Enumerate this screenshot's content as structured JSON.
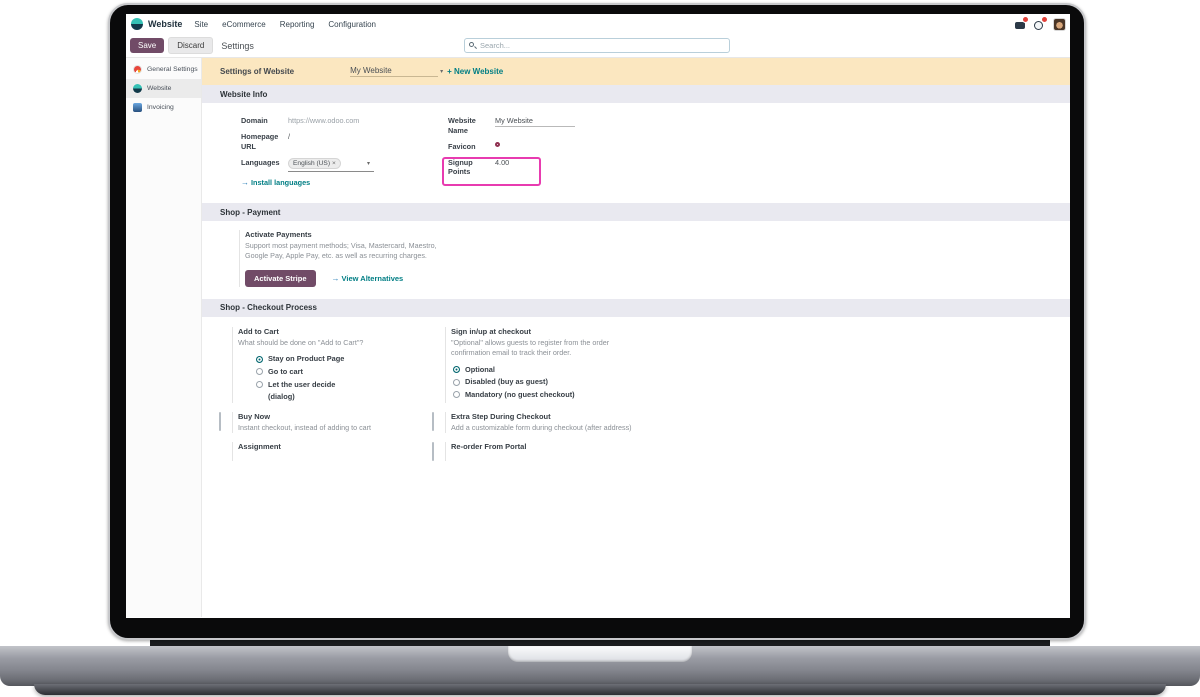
{
  "navbar": {
    "app_name": "Website",
    "menu": [
      "Site",
      "eCommerce",
      "Reporting",
      "Configuration"
    ]
  },
  "control_bar": {
    "save": "Save",
    "discard": "Discard",
    "breadcrumb": "Settings",
    "search_placeholder": "Search..."
  },
  "sidebar": {
    "items": [
      {
        "label": "General Settings"
      },
      {
        "label": "Website"
      },
      {
        "label": "Invoicing"
      }
    ]
  },
  "banner": {
    "label": "Settings of Website",
    "website_value": "My Website",
    "new_website": "+ New Website"
  },
  "website_info": {
    "title": "Website Info",
    "domain_label": "Domain",
    "domain_placeholder": "https://www.odoo.com",
    "homepage_label": "Homepage URL",
    "homepage_value": "/",
    "languages_label": "Languages",
    "language_tag": "English (US)",
    "remove_language": "×",
    "install_languages": "Install languages",
    "website_name_label": "Website Name",
    "website_name_value": "My Website",
    "favicon_label": "Favicon",
    "signup_points_label": "Signup Points",
    "signup_points_value": "4.00"
  },
  "shop_payment": {
    "title": "Shop - Payment",
    "activate_payments_title": "Activate Payments",
    "desc1": "Support most payment methods; Visa, Mastercard, Maestro,",
    "desc2": "Google Pay, Apple Pay, etc. as well as recurring charges.",
    "activate_stripe": "Activate Stripe",
    "view_alternatives": "View Alternatives"
  },
  "shop_checkout": {
    "title": "Shop - Checkout Process",
    "add_to_cart": {
      "title": "Add to Cart",
      "desc": "What should be done on \"Add to Cart\"?",
      "options": [
        {
          "label": "Stay on Product Page"
        },
        {
          "label": "Go to cart"
        },
        {
          "label": "Let the user decide",
          "sublabel": "(dialog)"
        }
      ]
    },
    "signup_checkout": {
      "title": "Sign in/up at checkout",
      "desc1": "\"Optional\" allows guests to register from the order",
      "desc2": "confirmation email to track their order.",
      "options": [
        {
          "label": "Optional"
        },
        {
          "label": "Disabled (buy as guest)"
        },
        {
          "label": "Mandatory (no guest checkout)"
        }
      ]
    },
    "buy_now": {
      "title": "Buy Now",
      "desc": "Instant checkout, instead of adding to cart"
    },
    "extra_step": {
      "title": "Extra Step During Checkout",
      "desc": "Add a customizable form during checkout (after address)"
    },
    "assignment": {
      "title": "Assignment"
    },
    "reorder": {
      "title": "Re-order From Portal"
    }
  },
  "icons": {
    "arrow_right": "→",
    "caret_down": "▾"
  },
  "colors": {
    "accent_plum": "#714B67",
    "accent_teal": "#017E84",
    "banner_bg": "#FBE7C0",
    "section_header_bg": "#E9E9F0",
    "highlight_pink": "#E83BB0",
    "badge_red": "#E0403A"
  }
}
